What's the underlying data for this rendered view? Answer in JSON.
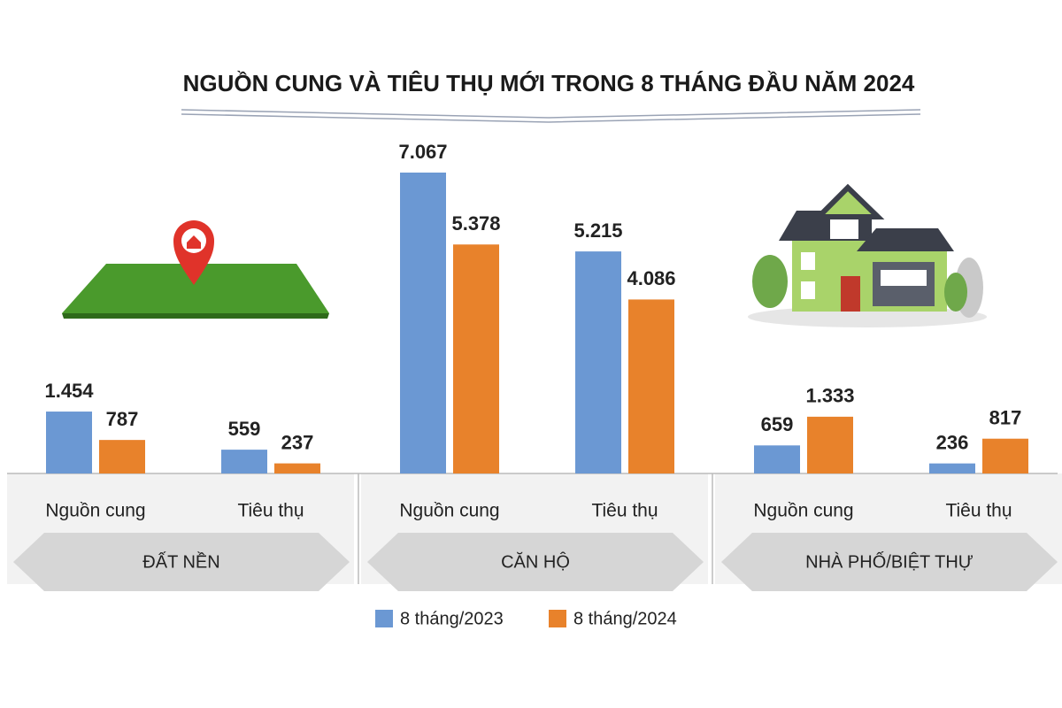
{
  "chart_data": {
    "type": "grouped-bar",
    "title": "NGUỒN CUNG VÀ TIÊU THỤ MỚI TRONG 8 THÁNG ĐẦU NĂM 2024",
    "groups": [
      "ĐẤT NỀN",
      "CĂN HỘ",
      "NHÀ PHỐ/BIỆT THỰ"
    ],
    "categories": [
      "Nguồn cung",
      "Tiêu thụ",
      "Nguồn cung",
      "Tiêu thụ",
      "Nguồn cung",
      "Tiêu thụ"
    ],
    "series": [
      {
        "name": "8 tháng/2023",
        "color": "#6b98d3",
        "values": [
          1454,
          559,
          7067,
          5215,
          659,
          236
        ],
        "value_labels": [
          "1.454",
          "559",
          "7.067",
          "5.215",
          "659",
          "236"
        ]
      },
      {
        "name": "8 tháng/2024",
        "color": "#e8822b",
        "values": [
          787,
          237,
          5378,
          4086,
          1333,
          817
        ],
        "value_labels": [
          "787",
          "237",
          "5.378",
          "4.086",
          "1.333",
          "817"
        ]
      }
    ],
    "legend": "bottom"
  }
}
